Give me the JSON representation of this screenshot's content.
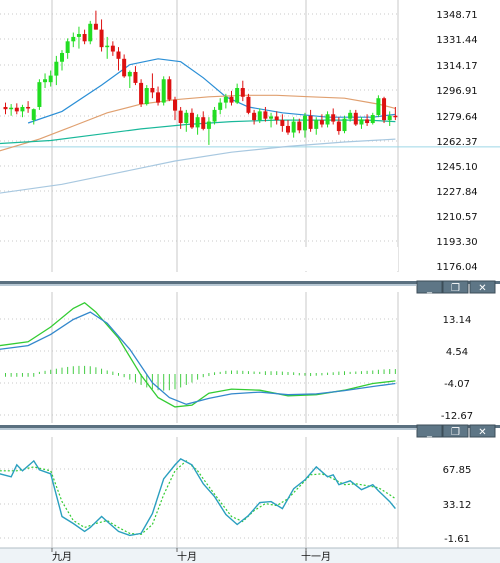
{
  "colors": {
    "up": "#22dd22",
    "down": "#dd1111",
    "grid": "#c8c8c8",
    "sep_dark": "#5a7080",
    "sep_light": "#b8c8d4",
    "ma_fast": "#2b8fd6",
    "ma_mid": "#19b89a",
    "ma_slow": "#e0a070",
    "ma_long": "#a8c8e0",
    "macd_line": "#33cc33",
    "signal_line": "#3388cc",
    "hist": "#44cc44",
    "osc_main": "#2a9fbf",
    "osc_signal": "#33cc33"
  },
  "window_buttons": [
    {
      "name": "minimize-button",
      "glyph": "_"
    },
    {
      "name": "restore-button",
      "glyph": "❐"
    },
    {
      "name": "close-button",
      "glyph": "✕"
    }
  ],
  "chart_data": [
    {
      "type": "candlestick",
      "y_ticks": [
        "1348.71",
        "1331.44",
        "1314.17",
        "1296.91",
        "1279.64",
        "1262.37",
        "1245.10",
        "1227.84",
        "1210.57",
        "1193.30",
        "1176.04"
      ],
      "ylim": [
        1176.04,
        1348.71
      ],
      "grid": true,
      "candles": [
        [
          1285.0,
          1288.0,
          1280.0,
          1283.5
        ],
        [
          1283.5,
          1287.0,
          1279.0,
          1284.5
        ],
        [
          1284.5,
          1287.5,
          1280.0,
          1282.0
        ],
        [
          1282.0,
          1286.5,
          1278.0,
          1285.0
        ],
        [
          1285.0,
          1289.0,
          1281.0,
          1284.0
        ],
        [
          1276.0,
          1284.0,
          1273.0,
          1283.5
        ],
        [
          1285.0,
          1304.0,
          1283.0,
          1302.0
        ],
        [
          1302.0,
          1308.0,
          1298.0,
          1304.0
        ],
        [
          1302.0,
          1310.0,
          1299.0,
          1306.5
        ],
        [
          1306.5,
          1320.0,
          1300.0,
          1316.0
        ],
        [
          1316.0,
          1324.0,
          1310.0,
          1322.0
        ],
        [
          1322.0,
          1332.0,
          1318.0,
          1330.0
        ],
        [
          1330.0,
          1336.0,
          1326.0,
          1333.0
        ],
        [
          1333.0,
          1340.0,
          1325.0,
          1335.0
        ],
        [
          1335.0,
          1338.0,
          1328.0,
          1330.0
        ],
        [
          1330.0,
          1344.0,
          1328.0,
          1342.0
        ],
        [
          1342.0,
          1351.0,
          1338.0,
          1338.0
        ],
        [
          1338.0,
          1345.0,
          1323.0,
          1326.0
        ],
        [
          1326.0,
          1333.0,
          1318.0,
          1327.0
        ],
        [
          1327.0,
          1330.0,
          1320.0,
          1323.0
        ],
        [
          1323.0,
          1326.0,
          1310.0,
          1318.0
        ],
        [
          1318.0,
          1321.0,
          1305.0,
          1306.0
        ],
        [
          1306.0,
          1310.0,
          1298.0,
          1309.0
        ],
        [
          1309.0,
          1313.0,
          1300.0,
          1301.5
        ],
        [
          1301.5,
          1304.0,
          1285.0,
          1287.0
        ],
        [
          1287.0,
          1300.0,
          1286.0,
          1298.0
        ],
        [
          1298.0,
          1308.0,
          1291.0,
          1295.0
        ],
        [
          1295.0,
          1299.0,
          1286.0,
          1288.0
        ],
        [
          1288.0,
          1306.0,
          1286.0,
          1304.0
        ],
        [
          1304.0,
          1306.0,
          1289.0,
          1290.0
        ],
        [
          1290.0,
          1292.0,
          1276.0,
          1282.5
        ],
        [
          1282.5,
          1285.0,
          1270.0,
          1274.0
        ],
        [
          1274.0,
          1283.0,
          1268.0,
          1281.0
        ],
        [
          1281.0,
          1284.0,
          1270.0,
          1271.0
        ],
        [
          1271.0,
          1280.0,
          1266.0,
          1278.0
        ],
        [
          1278.0,
          1282.0,
          1269.0,
          1270.0
        ],
        [
          1270.0,
          1278.0,
          1259.0,
          1275.0
        ],
        [
          1275.0,
          1285.0,
          1273.0,
          1283.0
        ],
        [
          1283.0,
          1291.0,
          1280.0,
          1288.0
        ],
        [
          1288.0,
          1294.0,
          1284.0,
          1292.0
        ],
        [
          1292.0,
          1296.0,
          1286.0,
          1288.0
        ],
        [
          1288.0,
          1301.0,
          1287.0,
          1298.0
        ],
        [
          1298.0,
          1303.0,
          1289.0,
          1292.0
        ],
        [
          1292.0,
          1294.0,
          1280.0,
          1281.0
        ],
        [
          1281.0,
          1283.0,
          1273.0,
          1276.0
        ],
        [
          1276.0,
          1284.0,
          1274.0,
          1282.0
        ],
        [
          1282.0,
          1285.0,
          1275.0,
          1277.0
        ],
        [
          1277.0,
          1281.0,
          1271.0,
          1278.5
        ],
        [
          1278.5,
          1282.0,
          1273.0,
          1276.0
        ],
        [
          1276.0,
          1280.0,
          1268.0,
          1272.0
        ],
        [
          1272.0,
          1276.0,
          1266.0,
          1267.5
        ],
        [
          1267.5,
          1278.0,
          1264.0,
          1275.0
        ],
        [
          1275.0,
          1277.0,
          1267.0,
          1269.0
        ],
        [
          1269.0,
          1281.0,
          1264.0,
          1279.0
        ],
        [
          1279.0,
          1283.0,
          1268.0,
          1270.0
        ],
        [
          1270.0,
          1278.0,
          1266.0,
          1276.0
        ],
        [
          1276.0,
          1280.0,
          1271.0,
          1273.0
        ],
        [
          1273.0,
          1282.0,
          1271.0,
          1280.0
        ],
        [
          1280.0,
          1284.0,
          1273.0,
          1275.0
        ],
        [
          1275.0,
          1278.0,
          1266.0,
          1268.5
        ],
        [
          1268.5,
          1279.0,
          1267.0,
          1277.0
        ],
        [
          1277.0,
          1283.0,
          1275.0,
          1281.0
        ],
        [
          1281.0,
          1283.0,
          1272.0,
          1273.0
        ],
        [
          1273.0,
          1278.0,
          1270.0,
          1276.5
        ],
        [
          1276.5,
          1280.0,
          1272.0,
          1274.0
        ],
        [
          1274.0,
          1281.0,
          1273.0,
          1279.5
        ],
        [
          1279.5,
          1293.0,
          1278.0,
          1291.0
        ],
        [
          1291.0,
          1292.0,
          1274.0,
          1276.0
        ],
        [
          1276.0,
          1282.0,
          1272.0,
          1279.0
        ],
        [
          1279.0,
          1285.0,
          1276.0,
          1278.5
        ]
      ],
      "ma": [
        {
          "key": "ma_fast",
          "points": [
            [
              4,
              1274
            ],
            [
              10,
              1282
            ],
            [
              17,
              1300
            ],
            [
              22,
              1314
            ],
            [
              27,
              1318
            ],
            [
              31,
              1316
            ],
            [
              35,
              1305
            ],
            [
              39,
              1292
            ],
            [
              43,
              1285
            ],
            [
              49,
              1281
            ],
            [
              57,
              1278
            ],
            [
              65,
              1278
            ],
            [
              69,
              1280
            ]
          ]
        },
        {
          "key": "ma_slow",
          "points": [
            [
              -1,
              1255
            ],
            [
              6,
              1263
            ],
            [
              12,
              1272
            ],
            [
              18,
              1281
            ],
            [
              24,
              1287
            ],
            [
              30,
              1290
            ],
            [
              36,
              1292
            ],
            [
              42,
              1293
            ],
            [
              48,
              1293
            ],
            [
              54,
              1292
            ],
            [
              60,
              1291
            ],
            [
              66,
              1287
            ],
            [
              69,
              1284
            ]
          ]
        },
        {
          "key": "ma_mid",
          "points": [
            [
              -1,
              1260
            ],
            [
              8,
              1262
            ],
            [
              16,
              1266
            ],
            [
              24,
              1270
            ],
            [
              32,
              1273
            ],
            [
              40,
              1275
            ],
            [
              48,
              1276
            ],
            [
              56,
              1276
            ],
            [
              64,
              1276
            ],
            [
              69,
              1275
            ]
          ]
        },
        {
          "key": "ma_long",
          "points": [
            [
              -1,
              1226
            ],
            [
              10,
              1232
            ],
            [
              20,
              1240
            ],
            [
              30,
              1248
            ],
            [
              40,
              1254
            ],
            [
              50,
              1258
            ],
            [
              60,
              1261
            ],
            [
              69,
              1263
            ]
          ]
        }
      ],
      "ref_line": 1258
    },
    {
      "type": "line+bar",
      "y_ticks": [
        "13.14",
        "4.54",
        "-4.07",
        "-12.67"
      ],
      "ylim": [
        -12.67,
        13.14
      ],
      "grid": true,
      "series": [
        {
          "key": "macd_line",
          "points": [
            [
              -1,
              6
            ],
            [
              4,
              7
            ],
            [
              8,
              11
            ],
            [
              12,
              16
            ],
            [
              14,
              17.5
            ],
            [
              16,
              15
            ],
            [
              20,
              8
            ],
            [
              24,
              -2
            ],
            [
              27,
              -8
            ],
            [
              30,
              -10.5
            ],
            [
              33,
              -10
            ],
            [
              36,
              -6.8
            ],
            [
              40,
              -5.7
            ],
            [
              45,
              -6
            ],
            [
              50,
              -7.5
            ],
            [
              55,
              -7.2
            ],
            [
              60,
              -6
            ],
            [
              65,
              -4.2
            ],
            [
              69,
              -3.5
            ]
          ]
        },
        {
          "key": "signal_line",
          "points": [
            [
              -1,
              5
            ],
            [
              4,
              6
            ],
            [
              8,
              9
            ],
            [
              12,
              13
            ],
            [
              15,
              15
            ],
            [
              18,
              12
            ],
            [
              22,
              5
            ],
            [
              26,
              -4
            ],
            [
              29,
              -8
            ],
            [
              32,
              -9.8
            ],
            [
              36,
              -8.2
            ],
            [
              40,
              -7
            ],
            [
              45,
              -6.5
            ],
            [
              50,
              -7.2
            ],
            [
              55,
              -7
            ],
            [
              60,
              -6.1
            ],
            [
              65,
              -5
            ],
            [
              69,
              -4.2
            ]
          ]
        }
      ],
      "hist": [
        -0.5,
        -0.5,
        -0.5,
        -0.5,
        -0.5,
        -0.5,
        0.6,
        0.9,
        1.2,
        1.5,
        1.8,
        2.0,
        2.2,
        2.3,
        2.3,
        2.2,
        1.9,
        1.5,
        1.0,
        0.4,
        -0.2,
        -0.9,
        -1.6,
        -2.4,
        -3.1,
        -3.8,
        -4.3,
        -4.6,
        -4.7,
        -4.6,
        -4.3,
        -3.8,
        -3.1,
        -2.4,
        -1.6,
        -0.9,
        -0.3,
        0.2,
        0.6,
        0.9,
        1.0,
        1.0,
        0.9,
        0.8,
        0.7,
        0.6,
        0.5,
        0.5,
        0.5,
        0.4,
        0.3,
        0.2,
        -0.1,
        -0.2,
        -0.3,
        -0.2,
        -0.1,
        0.1,
        0.2,
        0.4,
        0.5,
        0.6,
        0.7,
        0.8,
        0.9,
        1.0,
        1.2,
        1.3,
        1.4,
        1.4
      ]
    },
    {
      "type": "line",
      "y_ticks": [
        "67.85",
        "33.12",
        "-1.61"
      ],
      "ylim": [
        -1.61,
        67.85
      ],
      "grid": true,
      "series": [
        {
          "key": "osc_main",
          "points": [
            [
              -1,
              63
            ],
            [
              1,
              60
            ],
            [
              2,
              72
            ],
            [
              3,
              66
            ],
            [
              5,
              76
            ],
            [
              6,
              67
            ],
            [
              8,
              63
            ],
            [
              10,
              20
            ],
            [
              12,
              13
            ],
            [
              14,
              5
            ],
            [
              15,
              9
            ],
            [
              17,
              20
            ],
            [
              18,
              15
            ],
            [
              20,
              5
            ],
            [
              22,
              1
            ],
            [
              24,
              3
            ],
            [
              26,
              23
            ],
            [
              28,
              58
            ],
            [
              30,
              72
            ],
            [
              31,
              78
            ],
            [
              33,
              72
            ],
            [
              35,
              53
            ],
            [
              37,
              40
            ],
            [
              39,
              22
            ],
            [
              41,
              12
            ],
            [
              43,
              21
            ],
            [
              45,
              34
            ],
            [
              47,
              35
            ],
            [
              49,
              28
            ],
            [
              51,
              48
            ],
            [
              53,
              57
            ],
            [
              55,
              70
            ],
            [
              57,
              60
            ],
            [
              58,
              62
            ],
            [
              59,
              52
            ],
            [
              61,
              56
            ],
            [
              63,
              47
            ],
            [
              65,
              52
            ],
            [
              66,
              46
            ],
            [
              68,
              35
            ],
            [
              69,
              28
            ]
          ]
        },
        {
          "key": "osc_signal",
          "points": [
            [
              -1,
              66
            ],
            [
              2,
              66
            ],
            [
              5,
              70
            ],
            [
              8,
              66
            ],
            [
              10,
              35
            ],
            [
              12,
              16
            ],
            [
              14,
              9
            ],
            [
              16,
              13
            ],
            [
              18,
              16
            ],
            [
              20,
              9
            ],
            [
              22,
              3
            ],
            [
              24,
              2
            ],
            [
              26,
              12
            ],
            [
              28,
              42
            ],
            [
              30,
              66
            ],
            [
              32,
              76
            ],
            [
              34,
              66
            ],
            [
              36,
              50
            ],
            [
              38,
              35
            ],
            [
              40,
              20
            ],
            [
              42,
              15
            ],
            [
              44,
              26
            ],
            [
              46,
              33
            ],
            [
              48,
              31
            ],
            [
              50,
              38
            ],
            [
              52,
              50
            ],
            [
              54,
              62
            ],
            [
              56,
              63
            ],
            [
              58,
              58
            ],
            [
              60,
              52
            ],
            [
              62,
              53
            ],
            [
              64,
              51
            ],
            [
              66,
              49
            ],
            [
              68,
              42
            ],
            [
              69,
              38
            ]
          ]
        }
      ]
    }
  ],
  "time_labels": [
    {
      "text": "九月",
      "at": 10
    },
    {
      "text": "十月",
      "at": 32
    },
    {
      "text": "十一月",
      "at": 55
    }
  ]
}
